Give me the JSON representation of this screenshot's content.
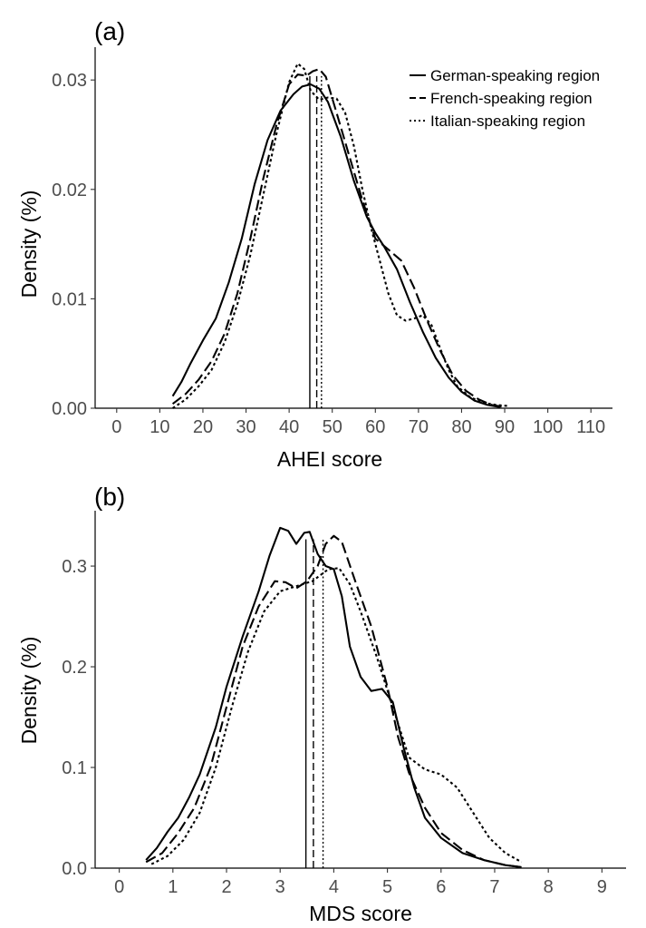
{
  "chart_data": [
    {
      "type": "line",
      "panel_label": "(a)",
      "xlabel": "AHEI score",
      "ylabel": "Density (%)",
      "xlim": [
        -5,
        115
      ],
      "ylim": [
        0,
        0.033
      ],
      "xticks": [
        "0",
        "10",
        "20",
        "30",
        "40",
        "50",
        "60",
        "70",
        "80",
        "90",
        "100",
        "110"
      ],
      "yticks": [
        "0.00",
        "0.01",
        "0.02",
        "0.03"
      ],
      "grid": false,
      "legend_position": "top-right",
      "series": [
        {
          "name": "German-speaking region",
          "style": "solid",
          "mean": 44.8,
          "points": [
            [
              13,
              0.0011
            ],
            [
              15,
              0.0024
            ],
            [
              17,
              0.004
            ],
            [
              20,
              0.0062
            ],
            [
              23,
              0.0082
            ],
            [
              26,
              0.0115
            ],
            [
              29,
              0.0155
            ],
            [
              32,
              0.0205
            ],
            [
              35,
              0.0245
            ],
            [
              38,
              0.0272
            ],
            [
              41,
              0.0287
            ],
            [
              43,
              0.0294
            ],
            [
              45,
              0.0296
            ],
            [
              47,
              0.0292
            ],
            [
              49,
              0.028
            ],
            [
              52,
              0.0248
            ],
            [
              55,
              0.0208
            ],
            [
              58,
              0.0175
            ],
            [
              60,
              0.016
            ],
            [
              62,
              0.0148
            ],
            [
              65,
              0.0127
            ],
            [
              68,
              0.0097
            ],
            [
              71,
              0.007
            ],
            [
              74,
              0.0046
            ],
            [
              77,
              0.0028
            ],
            [
              80,
              0.0015
            ],
            [
              83,
              0.0007
            ],
            [
              86,
              0.0003
            ],
            [
              89,
              0.0001
            ]
          ]
        },
        {
          "name": "French-speaking region",
          "style": "dashed",
          "mean": 46.4,
          "points": [
            [
              13,
              0.0004
            ],
            [
              16,
              0.0013
            ],
            [
              19,
              0.0026
            ],
            [
              22,
              0.0043
            ],
            [
              25,
              0.0068
            ],
            [
              28,
              0.0105
            ],
            [
              31,
              0.0155
            ],
            [
              34,
              0.021
            ],
            [
              37,
              0.0258
            ],
            [
              40,
              0.0296
            ],
            [
              42,
              0.0305
            ],
            [
              44,
              0.0304
            ],
            [
              45.5,
              0.0308
            ],
            [
              47,
              0.031
            ],
            [
              48.5,
              0.0303
            ],
            [
              51,
              0.027
            ],
            [
              54,
              0.023
            ],
            [
              57,
              0.019
            ],
            [
              60,
              0.0155
            ],
            [
              63,
              0.0145
            ],
            [
              66,
              0.0135
            ],
            [
              69,
              0.011
            ],
            [
              72,
              0.008
            ],
            [
              75,
              0.0053
            ],
            [
              78,
              0.003
            ],
            [
              81,
              0.0016
            ],
            [
              84,
              0.0008
            ],
            [
              87,
              0.0003
            ],
            [
              90,
              0.0001
            ]
          ]
        },
        {
          "name": "Italian-speaking region",
          "style": "dotted",
          "mean": 47.5,
          "points": [
            [
              13,
              0.0
            ],
            [
              16,
              0.0008
            ],
            [
              19,
              0.002
            ],
            [
              22,
              0.0035
            ],
            [
              25,
              0.006
            ],
            [
              28,
              0.0095
            ],
            [
              31,
              0.014
            ],
            [
              34,
              0.0195
            ],
            [
              37,
              0.025
            ],
            [
              40,
              0.0298
            ],
            [
              42,
              0.0315
            ],
            [
              43.5,
              0.031
            ],
            [
              45,
              0.029
            ],
            [
              47,
              0.0282
            ],
            [
              49,
              0.0284
            ],
            [
              51,
              0.0283
            ],
            [
              53,
              0.027
            ],
            [
              55,
              0.024
            ],
            [
              57,
              0.02
            ],
            [
              59,
              0.0165
            ],
            [
              61,
              0.0135
            ],
            [
              63,
              0.0105
            ],
            [
              65,
              0.0085
            ],
            [
              67,
              0.008
            ],
            [
              69,
              0.0082
            ],
            [
              71,
              0.0085
            ],
            [
              73,
              0.0076
            ],
            [
              75,
              0.0055
            ],
            [
              77,
              0.0035
            ],
            [
              79,
              0.002
            ],
            [
              82,
              0.001
            ],
            [
              85,
              0.0005
            ],
            [
              88,
              0.0003
            ],
            [
              91,
              0.0002
            ]
          ]
        }
      ]
    },
    {
      "type": "line",
      "panel_label": "(b)",
      "xlabel": "MDS score",
      "ylabel": "Density (%)",
      "xlim": [
        -0.45,
        9.45
      ],
      "ylim": [
        0,
        0.355
      ],
      "xticks": [
        "0",
        "1",
        "2",
        "3",
        "4",
        "5",
        "6",
        "7",
        "8",
        "9"
      ],
      "yticks": [
        "0.0",
        "0.1",
        "0.2",
        "0.3"
      ],
      "grid": false,
      "legend_position": "none",
      "series": [
        {
          "name": "German-speaking region",
          "style": "solid",
          "mean": 3.48,
          "points": [
            [
              0.5,
              0.008
            ],
            [
              0.7,
              0.02
            ],
            [
              0.9,
              0.036
            ],
            [
              1.1,
              0.05
            ],
            [
              1.3,
              0.07
            ],
            [
              1.5,
              0.093
            ],
            [
              1.8,
              0.14
            ],
            [
              2.0,
              0.18
            ],
            [
              2.3,
              0.23
            ],
            [
              2.6,
              0.275
            ],
            [
              2.8,
              0.31
            ],
            [
              3.0,
              0.338
            ],
            [
              3.15,
              0.335
            ],
            [
              3.3,
              0.322
            ],
            [
              3.45,
              0.333
            ],
            [
              3.55,
              0.334
            ],
            [
              3.7,
              0.312
            ],
            [
              3.85,
              0.3
            ],
            [
              4.0,
              0.297
            ],
            [
              4.15,
              0.27
            ],
            [
              4.3,
              0.22
            ],
            [
              4.5,
              0.19
            ],
            [
              4.7,
              0.176
            ],
            [
              4.9,
              0.178
            ],
            [
              5.1,
              0.165
            ],
            [
              5.3,
              0.12
            ],
            [
              5.5,
              0.08
            ],
            [
              5.7,
              0.05
            ],
            [
              6.0,
              0.03
            ],
            [
              6.4,
              0.015
            ],
            [
              6.8,
              0.008
            ],
            [
              7.2,
              0.003
            ],
            [
              7.5,
              0.001
            ]
          ]
        },
        {
          "name": "French-speaking region",
          "style": "dashed",
          "mean": 3.62,
          "points": [
            [
              0.5,
              0.006
            ],
            [
              0.8,
              0.015
            ],
            [
              1.1,
              0.035
            ],
            [
              1.4,
              0.06
            ],
            [
              1.7,
              0.1
            ],
            [
              2.0,
              0.16
            ],
            [
              2.3,
              0.22
            ],
            [
              2.6,
              0.26
            ],
            [
              2.9,
              0.285
            ],
            [
              3.1,
              0.284
            ],
            [
              3.3,
              0.278
            ],
            [
              3.5,
              0.285
            ],
            [
              3.7,
              0.3
            ],
            [
              3.85,
              0.322
            ],
            [
              4.0,
              0.33
            ],
            [
              4.15,
              0.324
            ],
            [
              4.4,
              0.285
            ],
            [
              4.7,
              0.24
            ],
            [
              5.0,
              0.18
            ],
            [
              5.2,
              0.13
            ],
            [
              5.4,
              0.095
            ],
            [
              5.7,
              0.06
            ],
            [
              6.0,
              0.035
            ],
            [
              6.4,
              0.018
            ],
            [
              6.8,
              0.008
            ],
            [
              7.2,
              0.003
            ],
            [
              7.5,
              0.001
            ]
          ]
        },
        {
          "name": "Italian-speaking region",
          "style": "dotted",
          "mean": 3.8,
          "points": [
            [
              0.6,
              0.004
            ],
            [
              0.9,
              0.012
            ],
            [
              1.2,
              0.028
            ],
            [
              1.5,
              0.055
            ],
            [
              1.8,
              0.1
            ],
            [
              2.1,
              0.16
            ],
            [
              2.4,
              0.215
            ],
            [
              2.7,
              0.255
            ],
            [
              3.0,
              0.275
            ],
            [
              3.3,
              0.28
            ],
            [
              3.6,
              0.285
            ],
            [
              3.9,
              0.297
            ],
            [
              4.1,
              0.298
            ],
            [
              4.3,
              0.282
            ],
            [
              4.5,
              0.255
            ],
            [
              4.8,
              0.21
            ],
            [
              5.1,
              0.16
            ],
            [
              5.4,
              0.11
            ],
            [
              5.7,
              0.098
            ],
            [
              6.0,
              0.093
            ],
            [
              6.3,
              0.08
            ],
            [
              6.6,
              0.055
            ],
            [
              6.9,
              0.03
            ],
            [
              7.2,
              0.015
            ],
            [
              7.5,
              0.006
            ]
          ]
        }
      ]
    }
  ]
}
